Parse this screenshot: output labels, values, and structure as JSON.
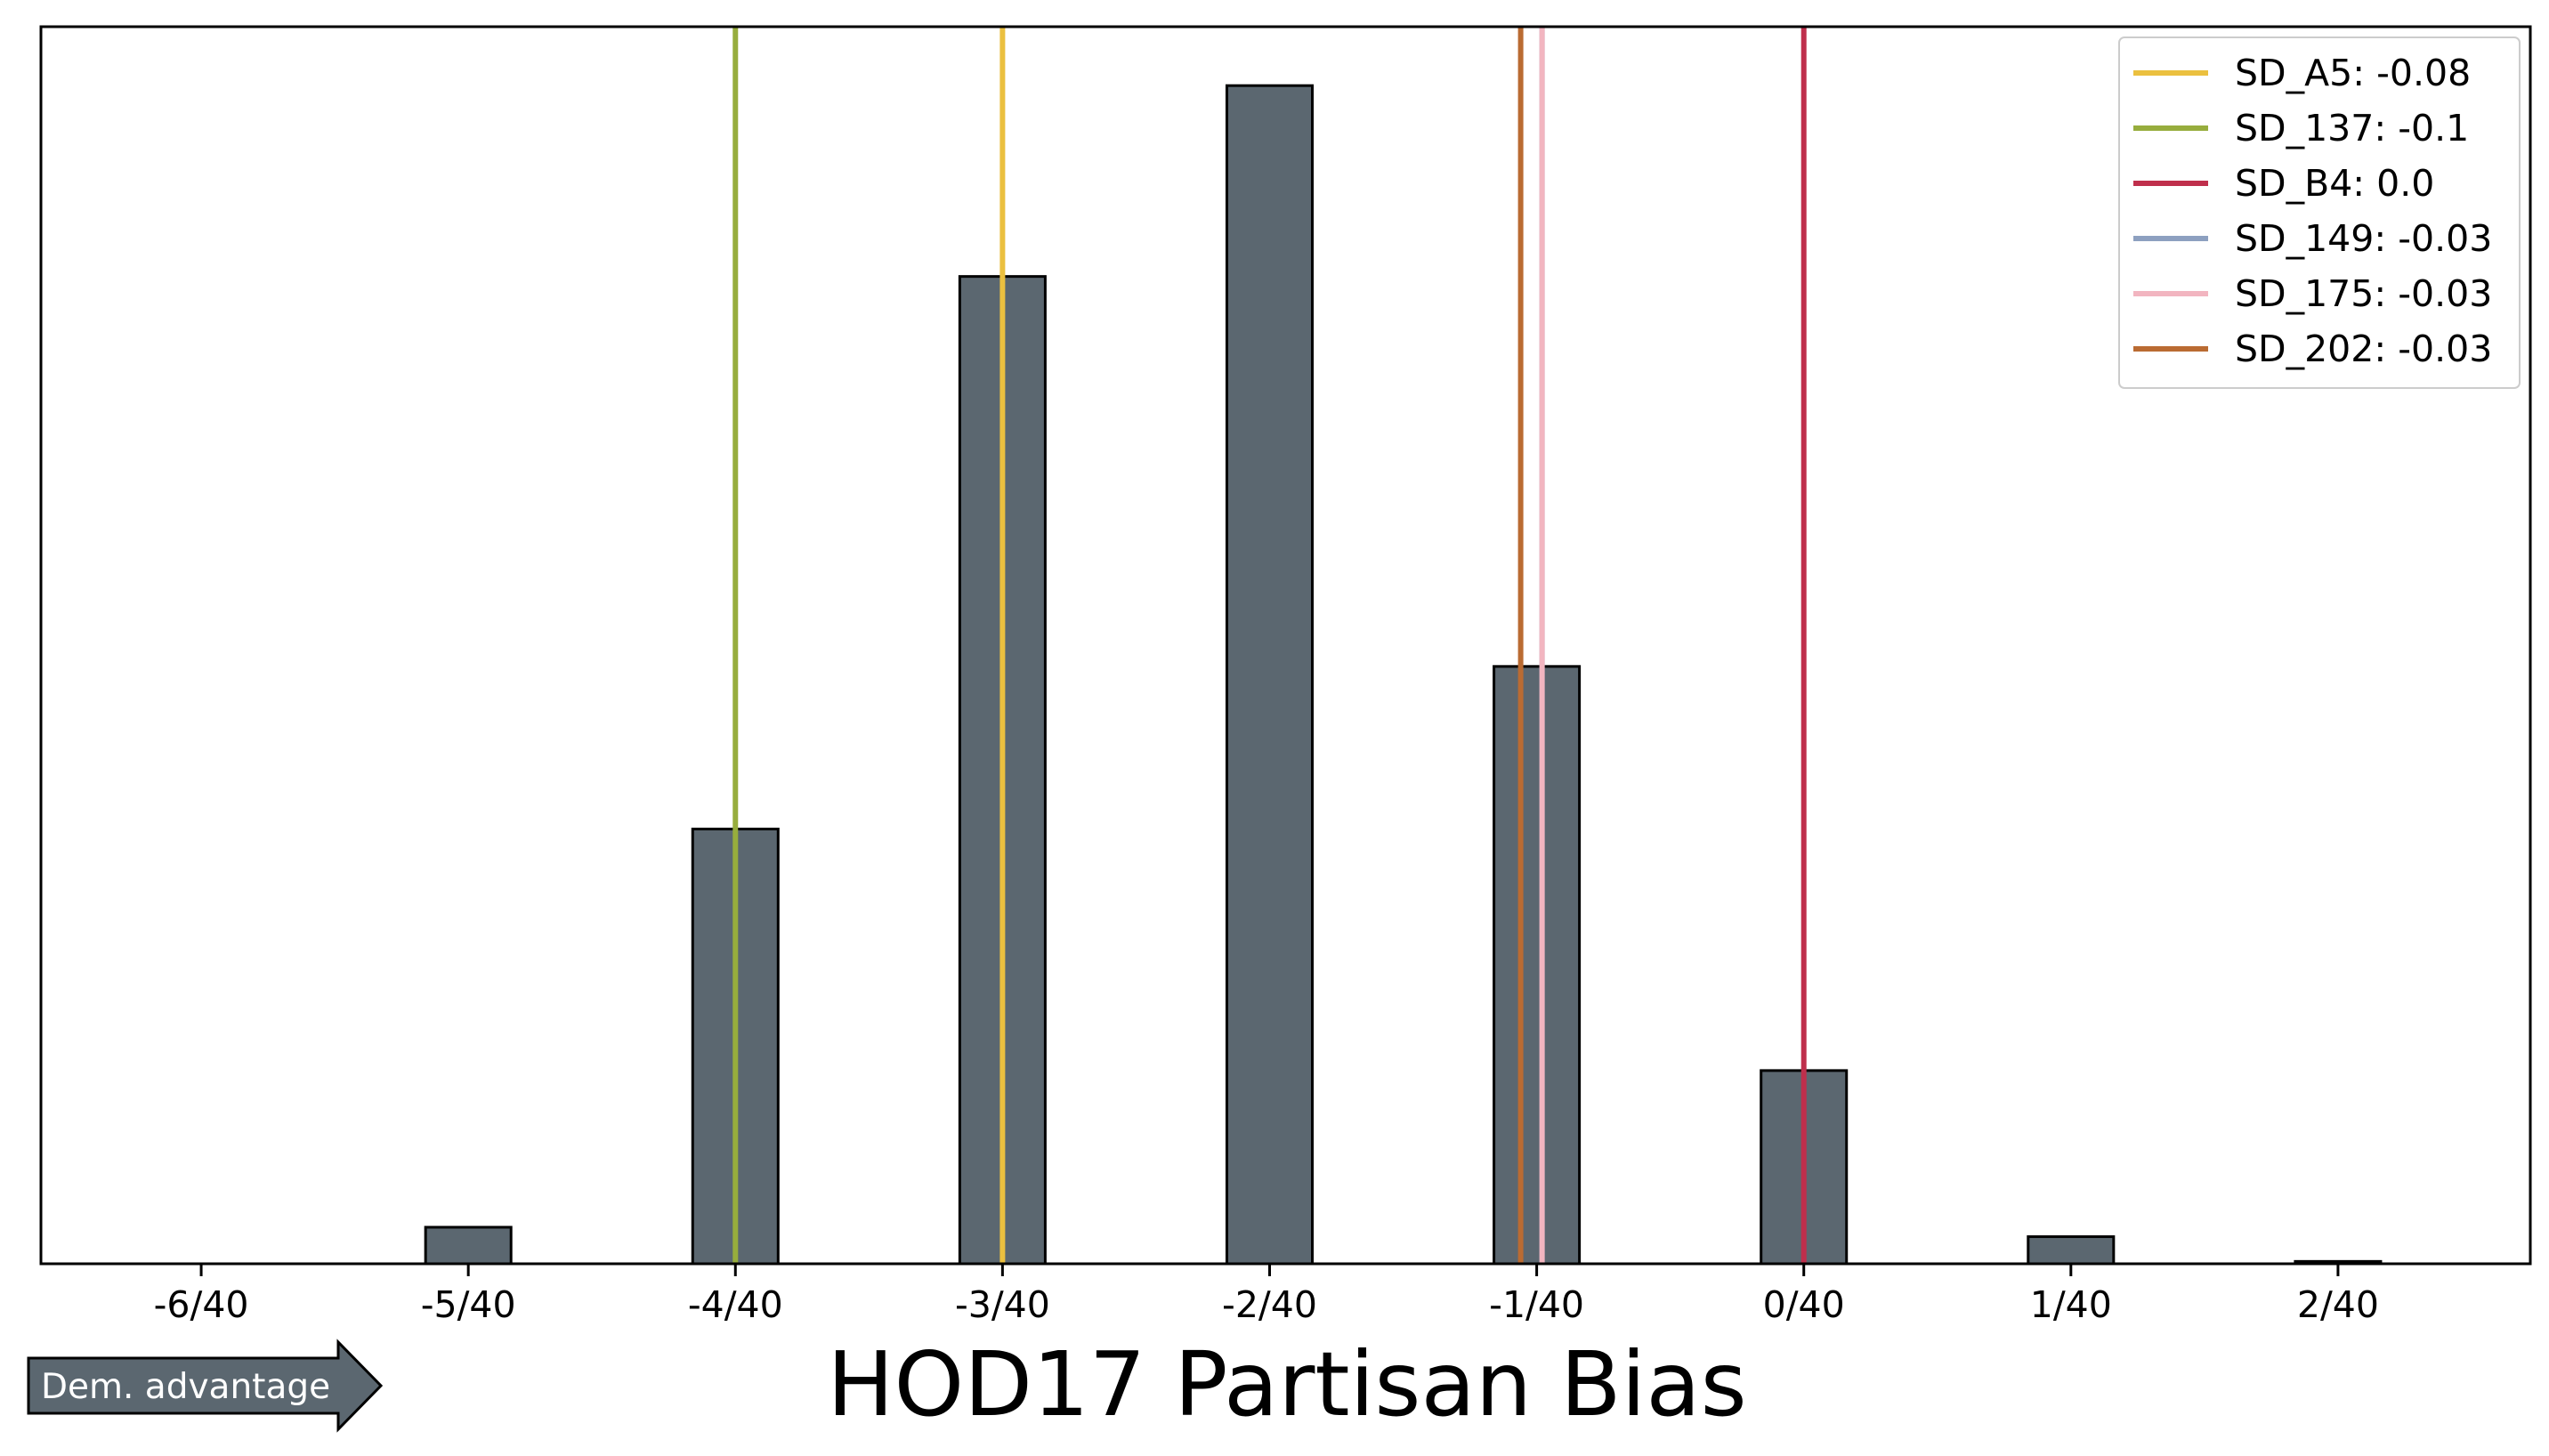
{
  "chart_data": {
    "type": "bar",
    "xlabel": "HOD17 Partisan Bias",
    "xlim": [
      -0.165,
      0.068
    ],
    "ylim": [
      0,
      1.05
    ],
    "x_ticks": [
      -0.15,
      -0.125,
      -0.1,
      -0.075,
      -0.05,
      -0.025,
      0.0,
      0.025,
      0.05
    ],
    "x_tick_labels": [
      "-6/40",
      "-5/40",
      "-4/40",
      "-3/40",
      "-2/40",
      "-1/40",
      "0/40",
      "1/40",
      "2/40"
    ],
    "bar_width": 0.008,
    "bars": [
      {
        "x": -0.15,
        "value": 0.0
      },
      {
        "x": -0.1375,
        "value": 0.0
      },
      {
        "x": -0.125,
        "value": 0.031
      },
      {
        "x": -0.1125,
        "value": 0.0
      },
      {
        "x": -0.1,
        "value": 0.369
      },
      {
        "x": -0.0875,
        "value": 0.0
      },
      {
        "x": -0.075,
        "value": 0.838
      },
      {
        "x": -0.0625,
        "value": 0.0
      },
      {
        "x": -0.05,
        "value": 1.0
      },
      {
        "x": -0.0375,
        "value": 0.0
      },
      {
        "x": -0.025,
        "value": 0.507
      },
      {
        "x": -0.0125,
        "value": 0.0
      },
      {
        "x": 0.0,
        "value": 0.164
      },
      {
        "x": 0.0125,
        "value": 0.0
      },
      {
        "x": 0.025,
        "value": 0.023
      },
      {
        "x": 0.0375,
        "value": 0.0
      },
      {
        "x": 0.05,
        "value": 0.002
      }
    ],
    "bar_color": "#5b6770",
    "series": [
      {
        "name": "SD_A5: -0.08",
        "value": -0.075,
        "color": "#ebc03f"
      },
      {
        "name": "SD_137: -0.1",
        "value": -0.1,
        "color": "#97ad3d"
      },
      {
        "name": "SD_B4: 0.0",
        "value": 0.0,
        "color": "#bf2f4c"
      },
      {
        "name": "SD_149: -0.03",
        "value": -0.0245,
        "color": "#8da0c0"
      },
      {
        "name": "SD_175: -0.03",
        "value": -0.0245,
        "color": "#f2b5c0"
      },
      {
        "name": "SD_202: -0.03",
        "value": -0.0265,
        "color": "#ba6b32"
      }
    ],
    "legend_position": "top-right",
    "annotation": "Dem. advantage",
    "annotation_color": "#5b6770",
    "grid": false
  }
}
